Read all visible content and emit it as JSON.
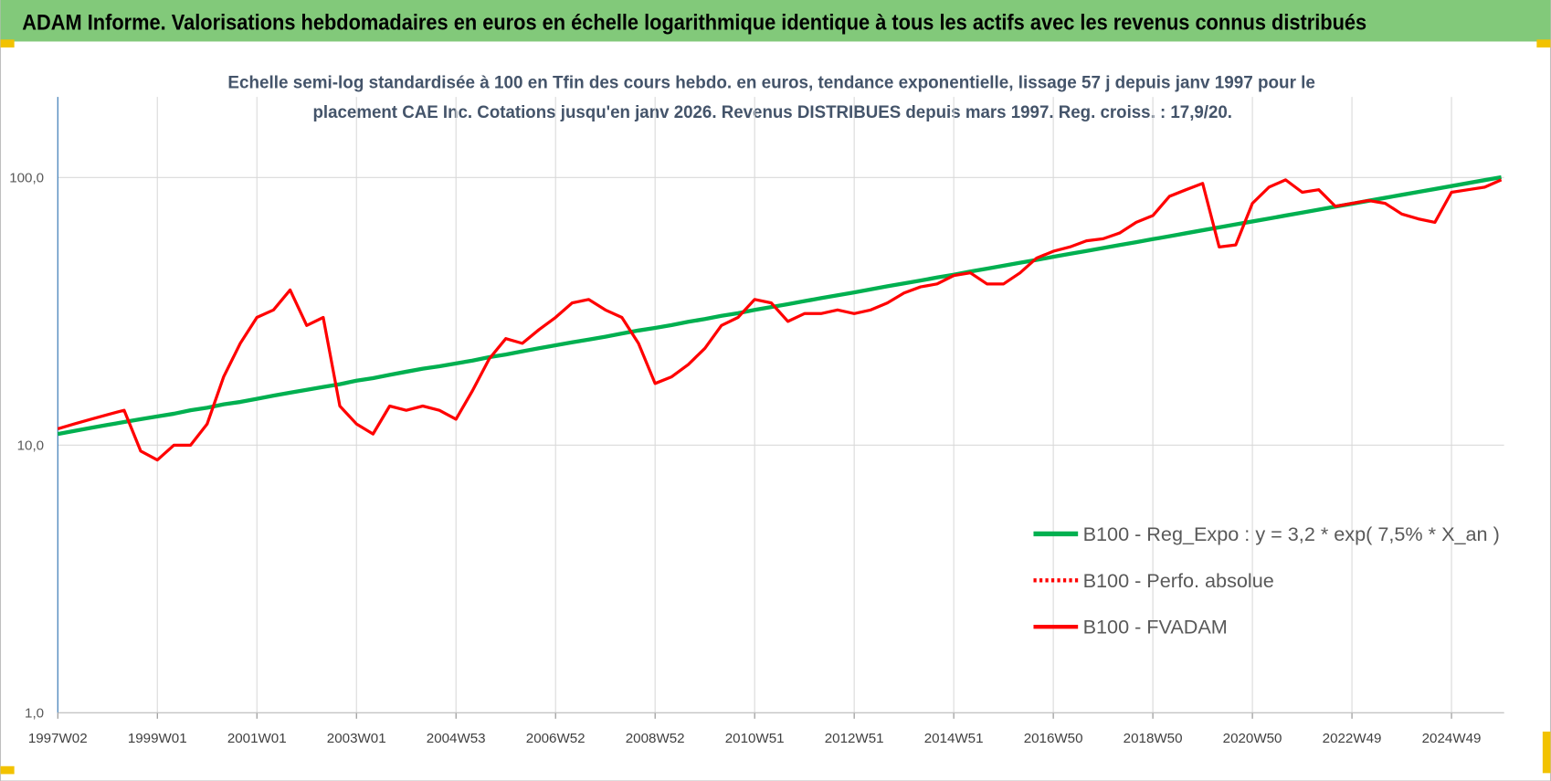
{
  "chart_data": {
    "type": "line",
    "title": "ADAM Informe. Valorisations hebdomadaires en euros en échelle logarithmique identique à tous les actifs avec les revenus connus distribués",
    "subtitle": [
      "Echelle semi-log standardisée à 100 en Tfin des cours hebdo. en euros, tendance exponentielle, lissage 57 j depuis janv 1997 pour le",
      "placement CAE Inc. Cotations jusqu'en janv 2026. Revenus DISTRIBUES depuis mars 1997. Reg. croiss. : 17,9/20."
    ],
    "categories": [
      "1997W02",
      null,
      null,
      null,
      null,
      null,
      "1999W01",
      null,
      null,
      null,
      null,
      null,
      "2001W01",
      null,
      null,
      null,
      null,
      null,
      "2003W01",
      null,
      null,
      null,
      null,
      null,
      "2004W53",
      null,
      null,
      null,
      null,
      null,
      "2006W52",
      null,
      null,
      null,
      null,
      null,
      "2008W52",
      null,
      null,
      null,
      null,
      null,
      "2010W51",
      null,
      null,
      null,
      null,
      null,
      "2012W51",
      null,
      null,
      null,
      null,
      null,
      "2014W51",
      null,
      null,
      null,
      null,
      null,
      "2016W50",
      null,
      null,
      null,
      null,
      null,
      "2018W50",
      null,
      null,
      null,
      null,
      null,
      "2020W50",
      null,
      null,
      null,
      null,
      null,
      "2022W49",
      null,
      null,
      null,
      null,
      null,
      "2024W49",
      null,
      null,
      null
    ],
    "series": [
      {
        "name": "B100 - Reg_Expo : y = 3,2 * exp( 7,5% *  X_an )",
        "color": "#00b050",
        "linestyle": "solid",
        "values": [
          11.0,
          11.3,
          11.6,
          11.9,
          12.2,
          12.5,
          12.8,
          13.1,
          13.5,
          13.8,
          14.2,
          14.5,
          14.9,
          15.3,
          15.7,
          16.1,
          16.5,
          16.9,
          17.4,
          17.8,
          18.3,
          18.8,
          19.3,
          19.7,
          20.2,
          20.7,
          21.3,
          21.8,
          22.4,
          23.0,
          23.6,
          24.2,
          24.8,
          25.4,
          26.1,
          26.8,
          27.4,
          28.1,
          28.9,
          29.6,
          30.4,
          31.1,
          32.0,
          32.8,
          33.6,
          34.5,
          35.4,
          36.3,
          37.2,
          38.2,
          39.2,
          40.2,
          41.2,
          42.3,
          43.3,
          44.5,
          45.6,
          46.8,
          48.0,
          49.2,
          50.5,
          51.8,
          53.1,
          54.5,
          55.9,
          57.3,
          58.8,
          60.3,
          61.9,
          63.5,
          65.1,
          66.8,
          68.5,
          70.2,
          72.1,
          73.9,
          75.8,
          77.8,
          79.7,
          81.8,
          83.9,
          86.1,
          88.3,
          90.5,
          92.9,
          95.3,
          97.7,
          100.2
        ]
      },
      {
        "name": "B100 - Perfo. absolue",
        "color": "#ff0000",
        "linestyle": "dotted",
        "values": [
          null,
          null,
          null,
          null,
          null,
          null,
          null,
          null,
          null,
          null,
          null,
          null,
          null,
          null,
          null,
          null,
          null,
          null,
          null,
          null,
          null,
          null,
          null,
          null,
          null,
          null,
          null,
          null,
          null,
          null,
          null,
          null,
          null,
          null,
          null,
          null,
          null,
          null,
          null,
          null,
          null,
          null,
          null,
          null,
          null,
          null,
          null,
          null,
          null,
          null,
          null,
          null,
          null,
          null,
          null,
          null,
          null,
          null,
          null,
          null,
          null,
          null,
          null,
          null,
          null,
          null,
          null,
          null,
          null,
          null,
          null,
          null,
          null,
          null,
          null,
          null,
          null,
          null,
          null,
          null,
          null,
          null,
          null,
          null,
          null,
          null,
          null,
          null
        ]
      },
      {
        "name": "B100 - FVADAM",
        "color": "#ff0000",
        "linestyle": "solid",
        "values": [
          11.5,
          12,
          12.5,
          13,
          13.5,
          9.5,
          8.8,
          10,
          10,
          12,
          18,
          24,
          30,
          32,
          38,
          28,
          30,
          14,
          12,
          11,
          14,
          13.5,
          14,
          13.5,
          12.5,
          16,
          21,
          25,
          24,
          27,
          30,
          34,
          35,
          32,
          30,
          24,
          17,
          18,
          20,
          23,
          28,
          30,
          35,
          34,
          29,
          31,
          31,
          32,
          31,
          32,
          34,
          37,
          39,
          40,
          43,
          44,
          40,
          40,
          44,
          50,
          53,
          55,
          58,
          59,
          62,
          68,
          72,
          85,
          90,
          95,
          55,
          56,
          80,
          92,
          98,
          88,
          90,
          78,
          80,
          82,
          80,
          73,
          70,
          68,
          88,
          90,
          92,
          98
        ]
      }
    ],
    "yscale": "log",
    "ylim": [
      1,
      200
    ],
    "yticks": [
      {
        "value": 1,
        "label": "1,0"
      },
      {
        "value": 10,
        "label": "10,0"
      },
      {
        "value": 100,
        "label": "100,0"
      }
    ],
    "grid": true,
    "legend": "lower right"
  }
}
